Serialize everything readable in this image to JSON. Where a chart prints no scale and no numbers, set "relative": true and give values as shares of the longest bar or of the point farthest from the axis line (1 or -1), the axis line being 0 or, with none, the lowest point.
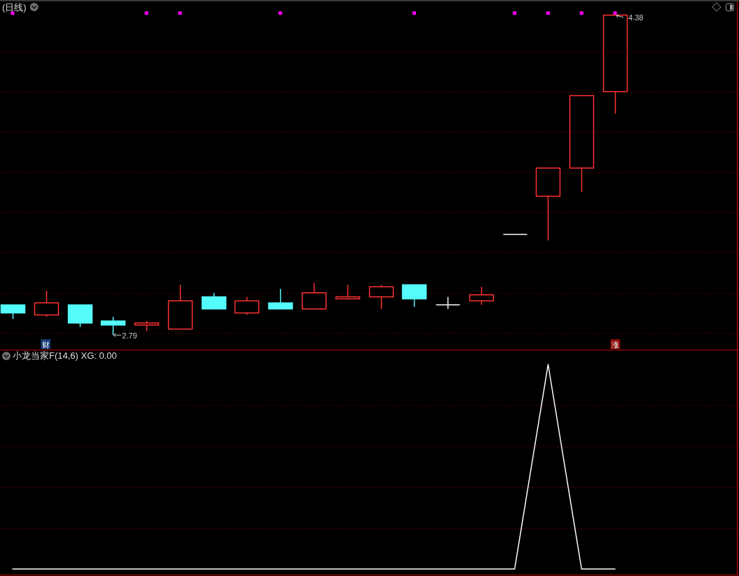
{
  "chart_data": [
    {
      "type": "candlestick",
      "title": "(日线)",
      "categories": [
        null,
        null,
        null,
        null,
        null,
        null,
        null,
        null,
        null,
        null,
        null,
        null,
        null,
        null,
        null,
        null,
        null,
        null,
        null
      ],
      "ohlc": [
        [
          2.94,
          2.94,
          2.87,
          2.9
        ],
        [
          2.89,
          3.01,
          2.88,
          2.95
        ],
        [
          2.94,
          2.94,
          2.83,
          2.85
        ],
        [
          2.86,
          2.88,
          2.79,
          2.84
        ],
        [
          2.84,
          2.86,
          2.81,
          2.85
        ],
        [
          2.82,
          3.04,
          2.82,
          2.96
        ],
        [
          2.98,
          3.0,
          2.92,
          2.92
        ],
        [
          2.9,
          2.98,
          2.89,
          2.96
        ],
        [
          2.95,
          3.02,
          2.92,
          2.92
        ],
        [
          2.92,
          3.05,
          2.92,
          3.0
        ],
        [
          2.97,
          3.04,
          2.97,
          2.98
        ],
        [
          2.98,
          3.04,
          2.92,
          3.03
        ],
        [
          3.04,
          3.04,
          2.93,
          2.97
        ],
        [
          2.94,
          2.98,
          2.92,
          2.94
        ],
        [
          2.96,
          3.03,
          2.94,
          2.99
        ],
        [
          3.29,
          3.29,
          3.29,
          3.29
        ],
        [
          3.48,
          3.62,
          3.26,
          3.62
        ],
        [
          3.62,
          3.98,
          3.5,
          3.98
        ],
        [
          4.0,
          4.38,
          3.89,
          4.38
        ]
      ],
      "colors": [
        "#54fcfc",
        "#ff3232",
        "#54fcfc",
        "#54fcfc",
        "#ff3232",
        "#ff3232",
        "#54fcfc",
        "#ff3232",
        "#54fcfc",
        "#ff3232",
        "#ff3232",
        "#ff3232",
        "#54fcfc",
        "#ffffff",
        "#ff3232",
        "#ffffff",
        "#ff3232",
        "#ff3232",
        "#ff3232"
      ],
      "series": [
        {
          "type": "scatter",
          "color": "#ff00ff",
          "values": [
            4.39,
            null,
            null,
            null,
            4.39,
            4.39,
            null,
            null,
            4.39,
            null,
            null,
            null,
            4.39,
            null,
            null,
            4.39,
            4.39,
            4.39,
            4.39
          ]
        }
      ],
      "marker": "square",
      "ref_lines": [
        {
          "axis": "y",
          "value": 2.8,
          "color": "#a00000",
          "line_style": "dotted"
        },
        {
          "axis": "y",
          "value": 3.0,
          "color": "#a00000",
          "line_style": "dotted"
        },
        {
          "axis": "y",
          "value": 3.2,
          "color": "#a00000",
          "line_style": "dotted"
        },
        {
          "axis": "y",
          "value": 3.4,
          "color": "#a00000",
          "line_style": "dotted"
        },
        {
          "axis": "y",
          "value": 3.6,
          "color": "#a00000",
          "line_style": "dotted"
        },
        {
          "axis": "y",
          "value": 3.8,
          "color": "#a00000",
          "line_style": "dotted"
        },
        {
          "axis": "y",
          "value": 4.0,
          "color": "#a00000",
          "line_style": "dotted"
        },
        {
          "axis": "y",
          "value": 4.2,
          "color": "#a00000",
          "line_style": "dotted"
        }
      ],
      "annotations": [
        "4.38",
        {
          "text": "2.79",
          "y": 2.79
        },
        "财",
        "涨"
      ]
    },
    {
      "type": "line",
      "title": "小龙当家F(14,6) XG: 0.00",
      "relative": true,
      "categories": [
        null,
        null,
        null,
        null,
        null,
        null,
        null,
        null,
        null,
        null,
        null,
        null,
        null,
        null,
        null,
        null,
        null,
        null,
        null
      ],
      "series": [
        {
          "color": "#ffffff",
          "values": [
            0,
            0,
            0,
            0,
            0,
            0,
            0,
            0,
            0,
            0,
            0,
            0,
            0,
            0,
            0,
            0,
            1,
            0,
            0
          ]
        }
      ],
      "ref_lines": [
        {
          "axis": "y",
          "value": 0.2,
          "color": "#a00000",
          "line_style": "dotted"
        },
        {
          "axis": "y",
          "value": 0.4,
          "color": "#a00000",
          "line_style": "dotted"
        },
        {
          "axis": "y",
          "value": 0.6,
          "color": "#a00000",
          "line_style": "dotted"
        },
        {
          "axis": "y",
          "value": 0.8,
          "color": "#a00000",
          "line_style": "dotted"
        }
      ]
    }
  ]
}
